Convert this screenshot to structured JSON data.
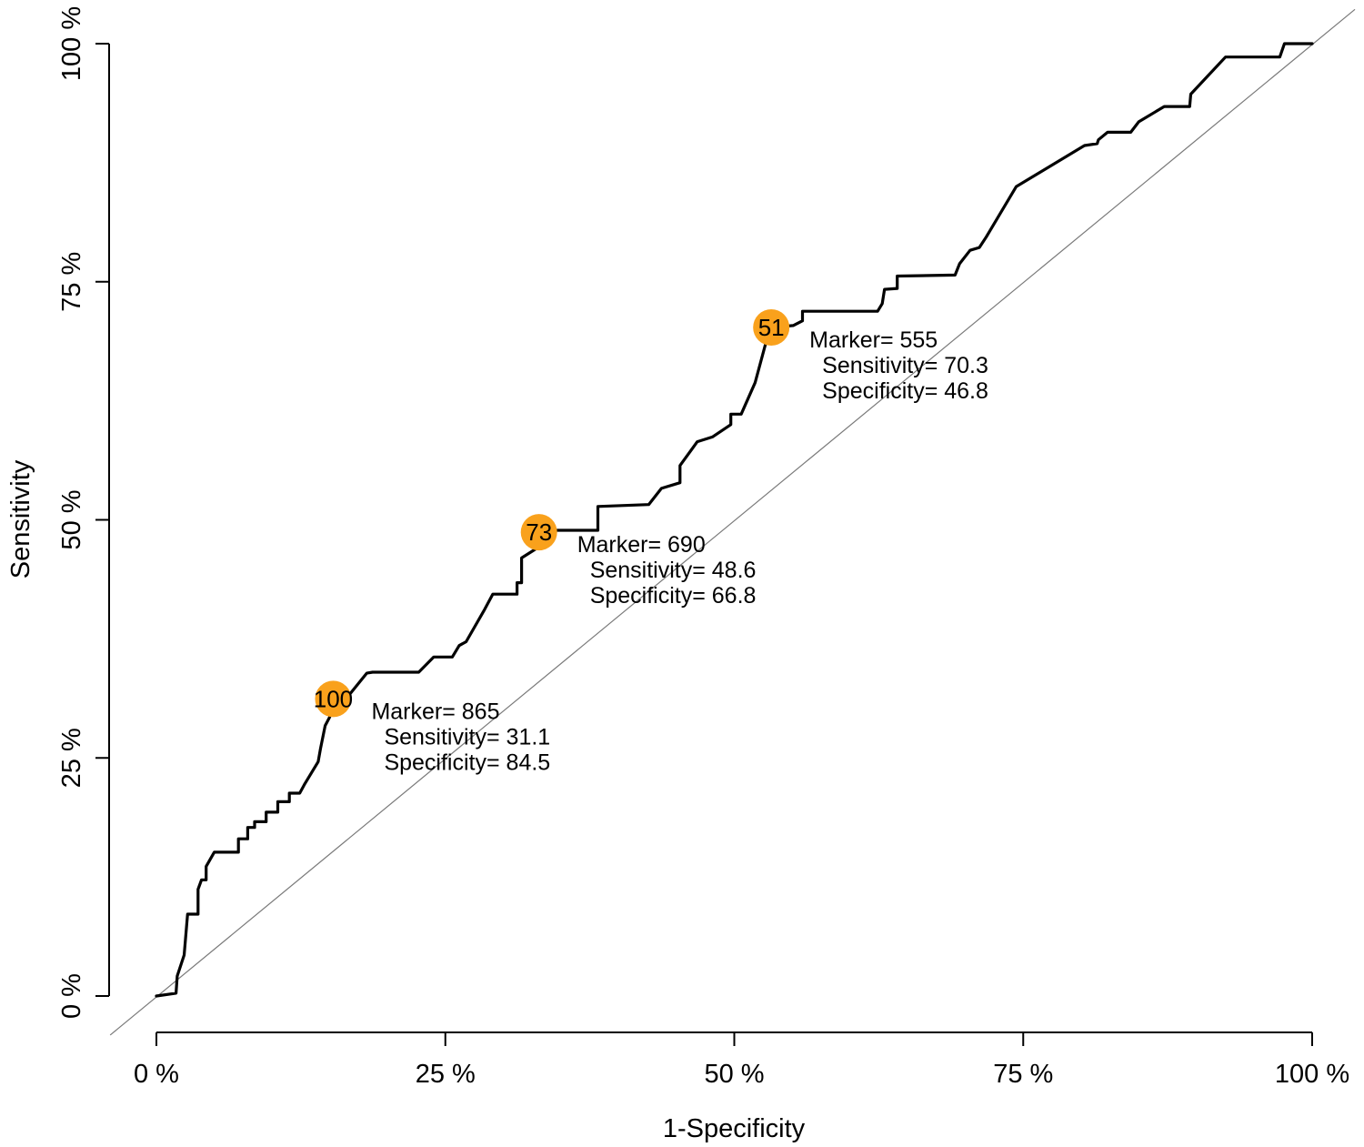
{
  "figure": {
    "background": "#ffffff",
    "axis_color": "#000000",
    "curve_color": "#000000",
    "diagonal_color": "#7a7a7a",
    "marker_fill": "#F9A11C",
    "marker_text_color": "#000000",
    "annotation_text_color": "#000000"
  },
  "chart_data": {
    "type": "line",
    "subtype": "roc-step-curve",
    "title": "",
    "xlabel": "1-Specificity",
    "ylabel": "Sensitivity",
    "xlim": [
      0,
      100
    ],
    "ylim": [
      0,
      100
    ],
    "grid": false,
    "legend": "none",
    "x_tick_values": [
      0,
      25,
      50,
      75,
      100
    ],
    "x_tick_labels": [
      "0 %",
      "25 %",
      "50 %",
      "75 %",
      "100 %"
    ],
    "y_tick_values": [
      0,
      25,
      50,
      75,
      100
    ],
    "y_tick_labels": [
      "0 %",
      "25 %",
      "50 %",
      "75 %",
      "100 %"
    ],
    "diagonal_reference": {
      "x": [
        -4.0,
        103.7
      ],
      "y": [
        -4.1,
        103.6
      ]
    },
    "roc_points": [
      [
        0,
        0
      ],
      [
        1.7,
        0.3
      ],
      [
        1.8,
        2.1
      ],
      [
        2.4,
        4.3
      ],
      [
        2.7,
        8.6
      ],
      [
        3.6,
        8.6
      ],
      [
        3.6,
        11.2
      ],
      [
        3.9,
        12.2
      ],
      [
        4.3,
        12.2
      ],
      [
        4.3,
        13.6
      ],
      [
        5.0,
        15.1
      ],
      [
        7.1,
        15.1
      ],
      [
        7.1,
        16.5
      ],
      [
        7.9,
        16.5
      ],
      [
        7.9,
        17.7
      ],
      [
        8.5,
        17.7
      ],
      [
        8.5,
        18.3
      ],
      [
        9.5,
        18.3
      ],
      [
        9.5,
        19.3
      ],
      [
        10.5,
        19.3
      ],
      [
        10.5,
        20.4
      ],
      [
        11.5,
        20.4
      ],
      [
        11.5,
        21.3
      ],
      [
        12.4,
        21.3
      ],
      [
        12.8,
        22.2
      ],
      [
        14.0,
        24.6
      ],
      [
        14.2,
        26.0
      ],
      [
        14.6,
        28.4
      ],
      [
        15.0,
        29.3
      ],
      [
        15.3,
        31.2
      ],
      [
        16.6,
        31.5
      ],
      [
        18.2,
        33.9
      ],
      [
        18.7,
        34.0
      ],
      [
        22.7,
        34.0
      ],
      [
        24.0,
        35.6
      ],
      [
        25.6,
        35.6
      ],
      [
        26.2,
        36.8
      ],
      [
        26.8,
        37.2
      ],
      [
        28.4,
        40.6
      ],
      [
        29.1,
        42.2
      ],
      [
        31.2,
        42.2
      ],
      [
        31.2,
        43.4
      ],
      [
        31.6,
        43.4
      ],
      [
        31.6,
        46.0
      ],
      [
        32.9,
        47.0
      ],
      [
        33.1,
        48.7
      ],
      [
        34.5,
        48.9
      ],
      [
        38.2,
        48.9
      ],
      [
        38.2,
        51.4
      ],
      [
        42.6,
        51.6
      ],
      [
        43.7,
        53.3
      ],
      [
        45.3,
        53.9
      ],
      [
        45.3,
        55.7
      ],
      [
        46.8,
        58.2
      ],
      [
        48.1,
        58.7
      ],
      [
        49.7,
        60.0
      ],
      [
        49.7,
        61.1
      ],
      [
        50.6,
        61.1
      ],
      [
        51.8,
        64.4
      ],
      [
        52.8,
        68.9
      ],
      [
        53.2,
        70.2
      ],
      [
        55.1,
        70.4
      ],
      [
        55.9,
        70.9
      ],
      [
        55.9,
        71.9
      ],
      [
        56.9,
        71.9
      ],
      [
        62.4,
        71.9
      ],
      [
        62.8,
        72.7
      ],
      [
        63.0,
        74.2
      ],
      [
        64.1,
        74.3
      ],
      [
        64.1,
        75.6
      ],
      [
        69.1,
        75.7
      ],
      [
        69.5,
        76.9
      ],
      [
        70.4,
        78.3
      ],
      [
        71.2,
        78.6
      ],
      [
        71.8,
        79.7
      ],
      [
        74.4,
        85.0
      ],
      [
        80.3,
        89.3
      ],
      [
        81.4,
        89.5
      ],
      [
        81.5,
        89.9
      ],
      [
        82.3,
        90.7
      ],
      [
        84.3,
        90.7
      ],
      [
        85.0,
        91.8
      ],
      [
        87.2,
        93.4
      ],
      [
        89.4,
        93.4
      ],
      [
        89.5,
        94.7
      ],
      [
        92.5,
        98.6
      ],
      [
        97.2,
        98.6
      ],
      [
        97.6,
        100
      ],
      [
        100,
        100
      ]
    ],
    "highlight_points": [
      {
        "label": "51",
        "x": 53.2,
        "y": 70.2,
        "marker_value": 555,
        "sensitivity": 70.3,
        "specificity": 46.8,
        "annotation_lines": [
          "Marker= 555",
          "Sensitivity= 70.3",
          "Specificity= 46.8"
        ]
      },
      {
        "label": "73",
        "x": 33.1,
        "y": 48.7,
        "marker_value": 690,
        "sensitivity": 48.6,
        "specificity": 66.8,
        "annotation_lines": [
          "Marker= 690",
          "Sensitivity= 48.6",
          "Specificity= 66.8"
        ]
      },
      {
        "label": "100",
        "x": 15.3,
        "y": 31.2,
        "marker_value": 865,
        "sensitivity": 31.1,
        "specificity": 84.5,
        "annotation_lines": [
          "Marker= 865",
          "Sensitivity= 31.1",
          "Specificity= 84.5"
        ]
      }
    ]
  }
}
